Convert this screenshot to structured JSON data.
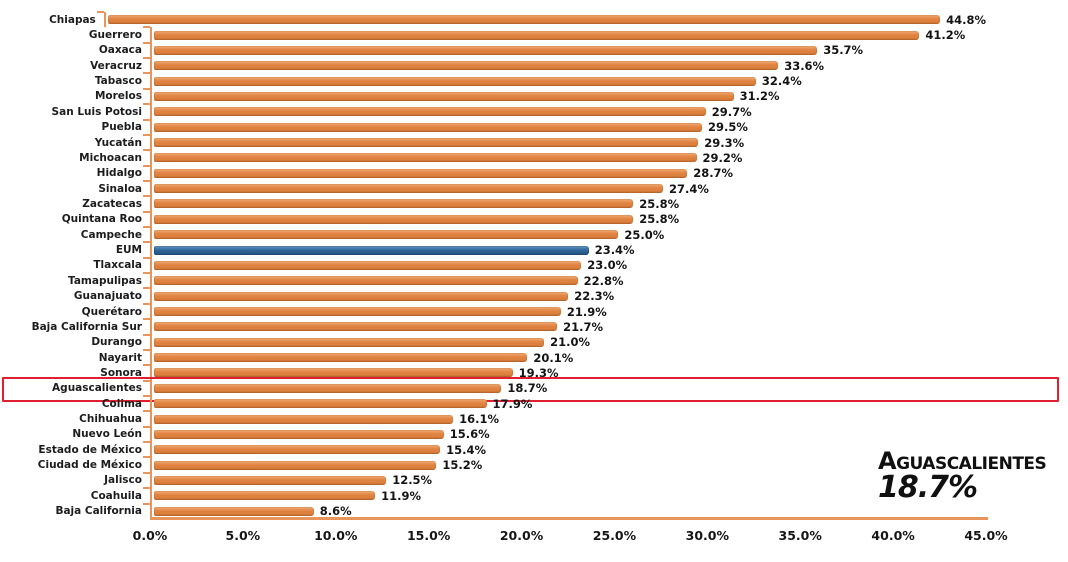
{
  "chart_data": {
    "type": "bar",
    "orientation": "horizontal",
    "title": "",
    "xlabel": "",
    "ylabel": "",
    "xlim": [
      0,
      45
    ],
    "grid": false,
    "legend": false,
    "x_ticks": [
      "0.0%",
      "5.0%",
      "10.0%",
      "15.0%",
      "20.0%",
      "25.0%",
      "30.0%",
      "35.0%",
      "40.0%",
      "45.0%"
    ],
    "categories": [
      "Chiapas",
      "Guerrero",
      "Oaxaca",
      "Veracruz",
      "Tabasco",
      "Morelos",
      "San Luis Potosi",
      "Puebla",
      "Yucatán",
      "Michoacan",
      "Hidalgo",
      "Sinaloa",
      "Zacatecas",
      "Quintana Roo",
      "Campeche",
      "EUM",
      "Tlaxcala",
      "Tamapulipas",
      "Guanajuato",
      "Querétaro",
      "Baja California Sur",
      "Durango",
      "Nayarit",
      "Sonora",
      "Aguascalientes",
      "Colima",
      "Chihuahua",
      "Nuevo León",
      "Estado de México",
      "Ciudad de México",
      "Jalisco",
      "Coahuila",
      "Baja California"
    ],
    "values": [
      44.8,
      41.2,
      35.7,
      33.6,
      32.4,
      31.2,
      29.7,
      29.5,
      29.3,
      29.2,
      28.7,
      27.4,
      25.8,
      25.8,
      25.0,
      23.4,
      23.0,
      22.8,
      22.3,
      21.9,
      21.7,
      21.0,
      20.1,
      19.3,
      18.7,
      17.9,
      16.1,
      15.6,
      15.4,
      15.2,
      12.5,
      11.9,
      8.6
    ],
    "value_labels": [
      "44.8%",
      "41.2%",
      "35.7%",
      "33.6%",
      "32.4%",
      "31.2%",
      "29.7%",
      "29.5%",
      "29.3%",
      "29.2%",
      "28.7%",
      "27.4%",
      "25.8%",
      "25.8%",
      "25.0%",
      "23.4%",
      "23.0%",
      "22.8%",
      "22.3%",
      "21.9%",
      "21.7%",
      "21.0%",
      "20.1%",
      "19.3%",
      "18.7%",
      "17.9%",
      "16.1%",
      "15.6%",
      "15.4%",
      "15.2%",
      "12.5%",
      "11.9%",
      "8.6%"
    ],
    "reference_category": "EUM",
    "highlighted_category": "Aguascalientes",
    "bar_color": "#e08443",
    "reference_bar_color": "#2e6496",
    "highlight_box_color": "#e01f2f",
    "axis_color": "#e8955c"
  },
  "annotation": {
    "line1": "Aguascalientes",
    "line2": "18.7%"
  }
}
